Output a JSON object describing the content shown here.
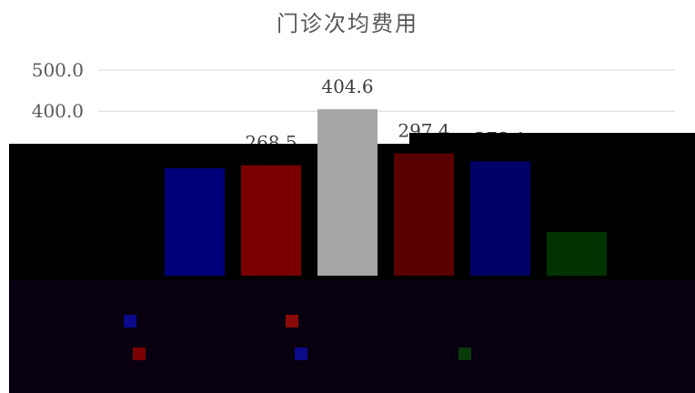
{
  "chart_data": {
    "type": "bar",
    "title": "门诊次均费用",
    "categories": [
      "",
      "",
      "",
      "",
      "",
      ""
    ],
    "values": [
      null,
      268.5,
      404.6,
      297.4,
      278.1,
      null
    ],
    "colors": [
      "#00007a",
      "#7a0000",
      "#a6a6a6",
      "#5a0000",
      "#000066",
      "#003300"
    ],
    "ylim": [
      0,
      500
    ],
    "yticks": [
      0,
      100,
      200,
      300,
      400,
      500
    ],
    "ytick_labels": [
      "",
      "",
      "",
      "",
      "400.0",
      "500.0"
    ],
    "data_labels": [
      "",
      "268.5",
      "404.6",
      "297.4",
      "278.1",
      ""
    ],
    "grid": true,
    "legend_position": "bottom"
  },
  "legend": [
    {
      "label": "",
      "color": "#0a0a8a"
    },
    {
      "label": "",
      "color": "#8a0a0a"
    },
    {
      "label": "",
      "color": "#7a0000"
    },
    {
      "label": "",
      "color": "#0a0a8a"
    },
    {
      "label": "",
      "color": "#0a3a0a"
    }
  ]
}
